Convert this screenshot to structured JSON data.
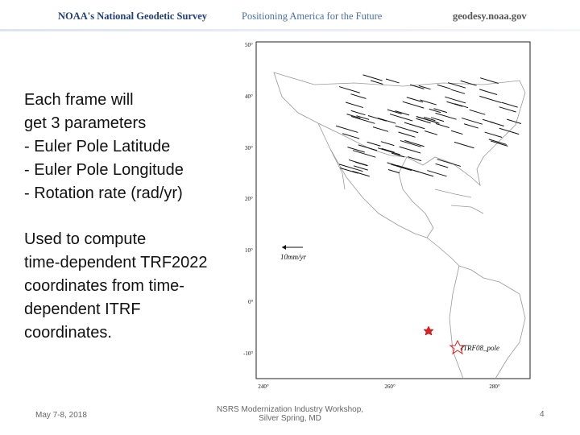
{
  "header": {
    "agency": "NOAA's National Geodetic Survey",
    "tagline": "Positioning America for the Future",
    "site": "geodesy.noaa.gov"
  },
  "body": {
    "block1": [
      "Each frame will",
      "get 3 parameters",
      "- Euler Pole Latitude",
      "- Euler Pole Longitude",
      "- Rotation rate (rad/yr)"
    ],
    "block2": [
      "Used to compute",
      "time-dependent TRF2022",
      "coordinates from time-",
      "dependent ITRF",
      "coordinates."
    ]
  },
  "map": {
    "lat_labels": [
      "50°",
      "40°",
      "30°",
      "20°",
      "10°",
      "0°",
      "-10°"
    ],
    "lon_labels": [
      "240°",
      "260°",
      "280°"
    ],
    "scale_label": "10mm/yr",
    "pole_label": "ITRF08_pole"
  },
  "footer": {
    "date": "May 7-8, 2018",
    "event": [
      "NSRS Modernization Industry Workshop,",
      "Silver Spring, MD"
    ],
    "page": "4"
  }
}
